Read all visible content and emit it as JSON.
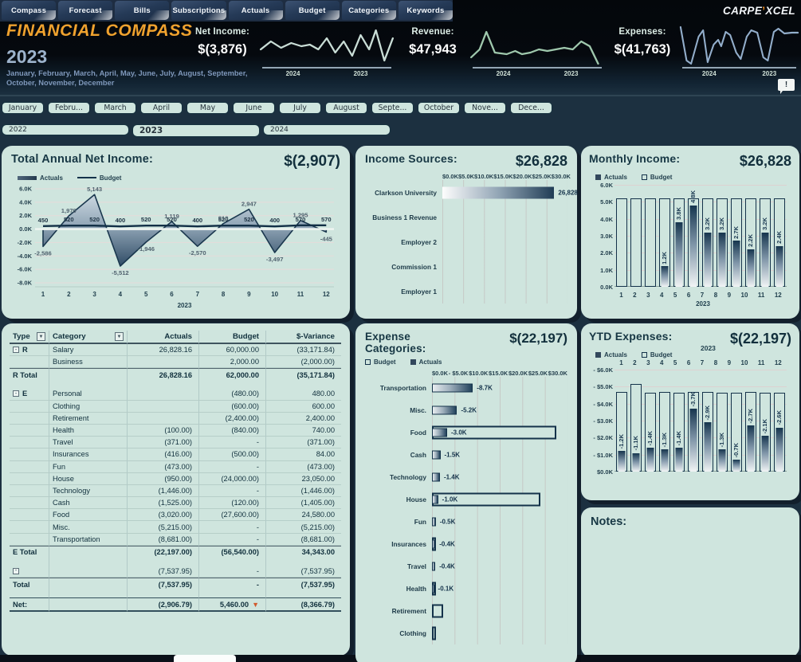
{
  "brand": {
    "carpe": "CARPE",
    "mark": "’",
    "xcel": "XCEL"
  },
  "tabs": [
    {
      "label": "Compass"
    },
    {
      "label": "Forecast"
    },
    {
      "label": "Bills"
    },
    {
      "label": "Subscriptions"
    },
    {
      "label": "Actuals"
    },
    {
      "label": "Budget"
    },
    {
      "label": "Categories"
    },
    {
      "label": "Keywords"
    }
  ],
  "header": {
    "title": "FINANCIAL COMPASS",
    "year": "2023",
    "months_line": "January, February, March, April, May, June, July, August, September, October, November, December",
    "alert_icon": "!",
    "kpis": [
      {
        "label": "Net Income:",
        "value": "$(3,876)",
        "years": [
          "2024",
          "2023"
        ],
        "color": "#c9ddd6",
        "points": [
          [
            2,
            30
          ],
          [
            14,
            20
          ],
          [
            26,
            28
          ],
          [
            38,
            22
          ],
          [
            50,
            26
          ],
          [
            60,
            24
          ],
          [
            70,
            30
          ],
          [
            80,
            16
          ],
          [
            90,
            34
          ],
          [
            100,
            20
          ],
          [
            110,
            38
          ],
          [
            120,
            12
          ],
          [
            130,
            30
          ],
          [
            138,
            6
          ],
          [
            148,
            44
          ],
          [
            158,
            16
          ]
        ]
      },
      {
        "label": "Revenue:",
        "value": "$47,943",
        "years": [
          "2024",
          "2023"
        ],
        "color": "#9fc8ad",
        "points": [
          [
            2,
            40
          ],
          [
            12,
            30
          ],
          [
            20,
            8
          ],
          [
            30,
            34
          ],
          [
            44,
            36
          ],
          [
            54,
            32
          ],
          [
            62,
            36
          ],
          [
            72,
            34
          ],
          [
            82,
            30
          ],
          [
            92,
            32
          ],
          [
            102,
            30
          ],
          [
            112,
            28
          ],
          [
            122,
            30
          ],
          [
            132,
            20
          ],
          [
            142,
            26
          ],
          [
            152,
            48
          ]
        ]
      },
      {
        "label": "Expenses:",
        "value": "$(41,763)",
        "years": [
          "2024",
          "2023"
        ],
        "color": "#93aecb",
        "points": [
          [
            2,
            2
          ],
          [
            10,
            44
          ],
          [
            16,
            48
          ],
          [
            26,
            14
          ],
          [
            32,
            6
          ],
          [
            38,
            46
          ],
          [
            46,
            24
          ],
          [
            52,
            18
          ],
          [
            56,
            26
          ],
          [
            62,
            8
          ],
          [
            68,
            12
          ],
          [
            76,
            34
          ],
          [
            82,
            42
          ],
          [
            90,
            14
          ],
          [
            96,
            6
          ],
          [
            104,
            9
          ],
          [
            112,
            40
          ],
          [
            118,
            44
          ],
          [
            126,
            8
          ],
          [
            132,
            4
          ],
          [
            140,
            10
          ],
          [
            150,
            9
          ],
          [
            158,
            9
          ]
        ]
      }
    ]
  },
  "filters": {
    "months": [
      "January",
      "Febru...",
      "March",
      "April",
      "May",
      "June",
      "July",
      "August",
      "Septe...",
      "October",
      "Nove...",
      "Dece..."
    ],
    "years": [
      "2022",
      "2023",
      "2024"
    ],
    "selected_year": "2023"
  },
  "panels": {
    "net_income": {
      "title": "Total Annual Net Income:",
      "value": "$(2,907)",
      "legend": {
        "actuals": "Actuals",
        "budget": "Budget"
      }
    },
    "income_sources": {
      "title": "Income Sources:",
      "value": "$26,828"
    },
    "monthly_income": {
      "title": "Monthly Income:",
      "value": "$26,828",
      "legend": {
        "actuals": "Actuals",
        "budget": "Budget"
      }
    },
    "expense_categories": {
      "title": "Expense Categories:",
      "value": "$(22,197)",
      "legend": {
        "budget": "Budget",
        "actuals": "Actuals"
      }
    },
    "ytd_expenses": {
      "title": "YTD Expenses:",
      "value": "$(22,197)",
      "legend": {
        "actuals": "Actuals",
        "budget": "Budget"
      }
    },
    "notes": {
      "title": "Notes:"
    }
  },
  "table": {
    "headers": [
      "Type",
      "Category",
      "Actuals",
      "Budget",
      "$-Variance"
    ],
    "rows": [
      {
        "k": "r",
        "group": true,
        "cells": [
          "R",
          "Salary",
          "26,828.16",
          "60,000.00",
          "(33,171.84)"
        ]
      },
      {
        "k": "r",
        "cells": [
          "",
          "Business",
          "",
          "2,000.00",
          "(2,000.00)"
        ]
      },
      {
        "k": "t",
        "cells": [
          "R Total",
          "",
          "26,828.16",
          "62,000.00",
          "(35,171.84)"
        ]
      },
      {
        "k": "s",
        "cells": [
          "",
          "",
          "",
          "",
          ""
        ]
      },
      {
        "k": "r",
        "group": true,
        "cells": [
          "E",
          "Personal",
          "",
          "(480.00)",
          "480.00"
        ]
      },
      {
        "k": "r",
        "cells": [
          "",
          "Clothing",
          "",
          "(600.00)",
          "600.00"
        ]
      },
      {
        "k": "r",
        "cells": [
          "",
          "Retirement",
          "",
          "(2,400.00)",
          "2,400.00"
        ]
      },
      {
        "k": "r",
        "cells": [
          "",
          "Health",
          "(100.00)",
          "(840.00)",
          "740.00"
        ]
      },
      {
        "k": "r",
        "cells": [
          "",
          "Travel",
          "(371.00)",
          "-",
          "(371.00)"
        ]
      },
      {
        "k": "r",
        "cells": [
          "",
          "Insurances",
          "(416.00)",
          "(500.00)",
          "84.00"
        ]
      },
      {
        "k": "r",
        "cells": [
          "",
          "Fun",
          "(473.00)",
          "-",
          "(473.00)"
        ]
      },
      {
        "k": "r",
        "cells": [
          "",
          "House",
          "(950.00)",
          "(24,000.00)",
          "23,050.00"
        ]
      },
      {
        "k": "r",
        "cells": [
          "",
          "Technology",
          "(1,446.00)",
          "-",
          "(1,446.00)"
        ]
      },
      {
        "k": "r",
        "cells": [
          "",
          "Cash",
          "(1,525.00)",
          "(120.00)",
          "(1,405.00)"
        ]
      },
      {
        "k": "r",
        "cells": [
          "",
          "Food",
          "(3,020.00)",
          "(27,600.00)",
          "24,580.00"
        ]
      },
      {
        "k": "r",
        "cells": [
          "",
          "Misc.",
          "(5,215.00)",
          "-",
          "(5,215.00)"
        ]
      },
      {
        "k": "r",
        "cells": [
          "",
          "Transportation",
          "(8,681.00)",
          "-",
          "(8,681.00)"
        ]
      },
      {
        "k": "t",
        "cells": [
          "E Total",
          "",
          "(22,197.00)",
          "(56,540.00)",
          "34,343.00"
        ]
      },
      {
        "k": "s",
        "cells": [
          "",
          "",
          "",
          "",
          ""
        ]
      },
      {
        "k": "r",
        "group": true,
        "cells": [
          "",
          "",
          "(7,537.95)",
          "-",
          "(7,537.95)"
        ]
      },
      {
        "k": "t",
        "cells": [
          "Total",
          "",
          "(7,537.95)",
          "-",
          "(7,537.95)"
        ]
      },
      {
        "k": "s",
        "cells": [
          "",
          "",
          "",
          "",
          ""
        ]
      },
      {
        "k": "net",
        "flag": "▼",
        "cells": [
          "Net:",
          "",
          "(2,906.79)",
          "5,460.00",
          "(8,366.79)"
        ]
      }
    ]
  },
  "chart_data": [
    {
      "name": "net_income_area",
      "type": "area",
      "title": "Total Annual Net Income:",
      "x_labels": [
        "1",
        "2",
        "3",
        "4",
        "5",
        "6",
        "7",
        "8",
        "9",
        "10",
        "11",
        "12"
      ],
      "x_axis_year": "2023",
      "ylim": [
        -8000,
        6000
      ],
      "y_ticks": [
        "6.0K",
        "4.0K",
        "2.0K",
        "0.0K",
        "-2.0K",
        "-4.0K",
        "-6.0K",
        "-8.0K"
      ],
      "series": [
        {
          "name": "Actuals",
          "values": [
            -2586,
            1970,
            5143,
            -5512,
            -1946,
            1119,
            -2570,
            810,
            2947,
            -3497,
            1295,
            -445
          ],
          "labels": [
            "-2,586",
            "1,970",
            "5,143",
            "-5,512",
            "-1,946",
            "1,119",
            "-2,570",
            "810",
            "2,947",
            "-3,497",
            "1,295",
            "-445"
          ]
        },
        {
          "name": "Budget",
          "values": [
            450,
            520,
            520,
            400,
            520,
            520,
            400,
            520,
            520,
            400,
            570,
            570
          ],
          "labels": [
            "450",
            "520",
            "520",
            "400",
            "520",
            "520",
            "400",
            "520",
            "520",
            "400",
            "570",
            "570"
          ]
        }
      ]
    },
    {
      "name": "income_sources",
      "type": "bar-horizontal",
      "title": "Income Sources:",
      "xlim": [
        0,
        30000
      ],
      "x_ticks": [
        "$0.0K",
        "$5.0K",
        "$10.0K",
        "$15.0K",
        "$20.0K",
        "$25.0K",
        "$30.0K"
      ],
      "categories": [
        "Clarkson University",
        "Business 1 Revenue",
        "Employer 2",
        "Commission 1",
        "Employer 1"
      ],
      "values": [
        26828,
        0,
        0,
        0,
        0
      ],
      "value_labels": [
        "26,828",
        "",
        "",
        "",
        ""
      ]
    },
    {
      "name": "monthly_income",
      "type": "bar",
      "title": "Monthly Income:",
      "ylim": [
        0,
        6000
      ],
      "y_ticks": [
        "6.0K",
        "5.0K",
        "4.0K",
        "3.0K",
        "2.0K",
        "1.0K",
        "0.0K"
      ],
      "categories": [
        "1",
        "2",
        "3",
        "4",
        "5",
        "6",
        "7",
        "8",
        "9",
        "10",
        "11",
        "12"
      ],
      "x_axis_year": "2023",
      "series": [
        {
          "name": "Actuals",
          "values": [
            0,
            0,
            0,
            1200,
            3800,
            4800,
            3200,
            3200,
            2700,
            2200,
            3200,
            2400
          ],
          "labels": [
            "",
            "",
            "",
            "1.2K",
            "3.8K",
            "4.8K",
            "3.2K",
            "3.2K",
            "2.7K",
            "2.2K",
            "3.2K",
            "2.4K"
          ]
        },
        {
          "name": "Budget",
          "values": [
            5200,
            5200,
            5200,
            5200,
            5200,
            5200,
            5200,
            5200,
            5200,
            5200,
            5200,
            5200
          ]
        }
      ]
    },
    {
      "name": "expense_categories",
      "type": "bar-horizontal",
      "title": "Expense Categories:",
      "xlim": [
        0,
        30000
      ],
      "x_ticks": [
        "$0.0K",
        "- $5.0K",
        "$10.0K",
        "$15.0K",
        "$20.0K",
        "$25.0K",
        "$30.0K"
      ],
      "categories": [
        "Transportation",
        "Misc.",
        "Food",
        "Cash",
        "Technology",
        "House",
        "Fun",
        "Insurances",
        "Travel",
        "Health",
        "Retirement",
        "Clothing"
      ],
      "series": [
        {
          "name": "Actuals",
          "values": [
            8700,
            5200,
            3000,
            1500,
            1400,
            1000,
            500,
            400,
            400,
            100,
            0,
            0
          ],
          "labels": [
            "-8.7K",
            "-5.2K",
            "-3.0K",
            "-1.5K",
            "-1.4K",
            "-1.0K",
            "-0.5K",
            "-0.4K",
            "-0.4K",
            "-0.1K",
            "",
            ""
          ]
        },
        {
          "name": "Budget",
          "values": [
            0,
            0,
            27600,
            120,
            0,
            24000,
            0,
            500,
            0,
            840,
            2400,
            600
          ]
        }
      ]
    },
    {
      "name": "ytd_expenses",
      "type": "bar",
      "title": "YTD Expenses:",
      "ylim": [
        0,
        6000
      ],
      "y_ticks": [
        "- $6.0K",
        "- $5.0K",
        "- $4.0K",
        "- $3.0K",
        "- $2.0K",
        "- $1.0K",
        "$0.0K"
      ],
      "categories": [
        "1",
        "2",
        "3",
        "4",
        "5",
        "6",
        "7",
        "8",
        "9",
        "10",
        "11",
        "12"
      ],
      "x_axis_year": "2023",
      "series": [
        {
          "name": "Actuals",
          "values": [
            1200,
            1100,
            1400,
            1300,
            1400,
            3700,
            2900,
            1300,
            700,
            2700,
            2100,
            2600
          ],
          "labels": [
            "-1.2K",
            "-1.1K",
            "-1.4K",
            "-1.3K",
            "-1.4K",
            "-3.7K",
            "-2.9K",
            "-1.3K",
            "-0.7K",
            "-2.7K",
            "-2.1K",
            "-2.6K"
          ]
        },
        {
          "name": "Budget",
          "values": [
            4700,
            5150,
            4650,
            4700,
            4650,
            4700,
            4700,
            4650,
            4650,
            4700,
            4650,
            4650
          ]
        }
      ]
    }
  ]
}
